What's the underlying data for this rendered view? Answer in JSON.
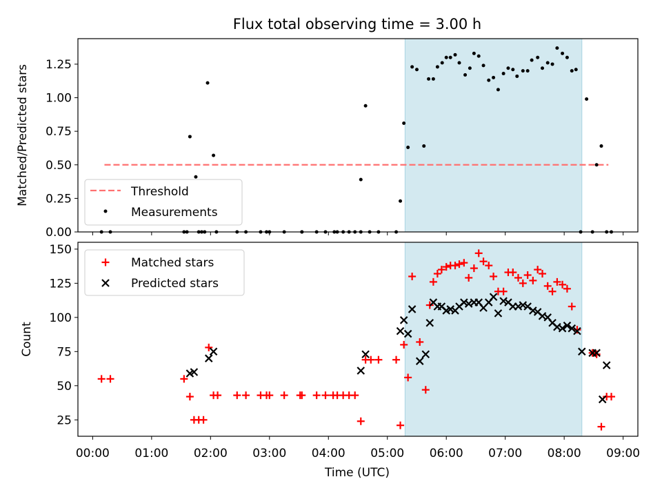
{
  "chart_data": [
    {
      "type": "scatter",
      "title": "Flux total observing time = 3.00 h",
      "ylabel": "Matched/Predicted stars",
      "xlabel": "",
      "xlim_hours": [
        -0.25,
        9.25
      ],
      "ylim": [
        0,
        1.44
      ],
      "yticks": [
        "0.00",
        "0.25",
        "0.50",
        "0.75",
        "1.00",
        "1.25"
      ],
      "legend_position": "lower-left",
      "legend": {
        "threshold": "Threshold",
        "measurements": "Measurements"
      },
      "threshold": {
        "value": 0.5,
        "x": [
          0.2,
          8.75
        ],
        "color": "#ff7070"
      },
      "highlight_span_hours": [
        5.3,
        8.3
      ],
      "highlight_color": "#d3e9f0",
      "series": [
        {
          "name": "Measurements",
          "marker": "point",
          "color": "#000000",
          "x": [
            0.15,
            0.3,
            1.55,
            1.6,
            1.65,
            1.75,
            1.8,
            1.85,
            1.9,
            1.95,
            2.05,
            2.1,
            2.45,
            2.6,
            2.85,
            2.95,
            3.0,
            3.25,
            3.55,
            3.55,
            3.8,
            3.95,
            4.1,
            4.15,
            4.25,
            4.35,
            4.45,
            4.55,
            4.55,
            4.63,
            4.7,
            4.85,
            5.15,
            5.22,
            5.28,
            5.35,
            5.42,
            5.5,
            5.62,
            5.7,
            5.78,
            5.85,
            5.93,
            6.0,
            6.07,
            6.15,
            6.22,
            6.32,
            6.4,
            6.47,
            6.55,
            6.63,
            6.72,
            6.8,
            6.88,
            6.97,
            7.05,
            7.13,
            7.2,
            7.3,
            7.38,
            7.45,
            7.55,
            7.63,
            7.72,
            7.8,
            7.88,
            7.97,
            8.05,
            8.13,
            8.2,
            8.28,
            8.38,
            8.48,
            8.55,
            8.63,
            8.72,
            8.8
          ],
          "values": [
            0.0,
            0.0,
            0.0,
            0.0,
            0.71,
            0.41,
            0.0,
            0.0,
            0.0,
            1.11,
            0.57,
            0.0,
            0.0,
            0.0,
            0.0,
            0.0,
            0.0,
            0.0,
            0.0,
            0.0,
            0.0,
            0.0,
            0.0,
            0.0,
            0.0,
            0.0,
            0.0,
            0.0,
            0.39,
            0.94,
            0.0,
            0.0,
            0.0,
            0.23,
            0.81,
            0.63,
            1.23,
            1.21,
            0.64,
            1.14,
            1.14,
            1.23,
            1.26,
            1.3,
            1.3,
            1.32,
            1.26,
            1.17,
            1.22,
            1.33,
            1.31,
            1.24,
            1.13,
            1.15,
            1.06,
            1.18,
            1.22,
            1.21,
            1.16,
            1.2,
            1.2,
            1.28,
            1.3,
            1.22,
            1.26,
            1.25,
            1.37,
            1.33,
            1.3,
            1.2,
            1.21,
            0.0,
            0.99,
            0.0,
            0.5,
            0.64,
            0.0,
            0.0
          ]
        }
      ]
    },
    {
      "type": "scatter",
      "title": "",
      "ylabel": "Count",
      "xlabel": "Time (UTC)",
      "xlim_hours": [
        -0.25,
        9.25
      ],
      "ylim": [
        13,
        155
      ],
      "yticks": [
        "25",
        "50",
        "75",
        "100",
        "125",
        "150"
      ],
      "xticks": [
        "00:00",
        "01:00",
        "02:00",
        "03:00",
        "04:00",
        "05:00",
        "06:00",
        "07:00",
        "08:00",
        "09:00"
      ],
      "legend_position": "top-left",
      "legend": {
        "matched": "Matched stars",
        "predicted": "Predicted stars"
      },
      "highlight_span_hours": [
        5.3,
        8.3
      ],
      "highlight_color": "#d3e9f0",
      "series": [
        {
          "name": "Matched stars",
          "marker": "plus",
          "color": "#ff0000",
          "x": [
            0.15,
            0.3,
            1.55,
            1.65,
            1.72,
            1.8,
            1.88,
            1.97,
            2.05,
            2.12,
            2.45,
            2.6,
            2.85,
            2.95,
            3.0,
            3.25,
            3.52,
            3.55,
            3.8,
            3.95,
            4.08,
            4.15,
            4.25,
            4.35,
            4.45,
            4.55,
            4.63,
            4.72,
            4.85,
            5.15,
            5.22,
            5.28,
            5.35,
            5.42,
            5.55,
            5.65,
            5.72,
            5.78,
            5.85,
            5.92,
            6.0,
            6.07,
            6.15,
            6.22,
            6.3,
            6.38,
            6.47,
            6.55,
            6.63,
            6.72,
            6.8,
            6.88,
            6.97,
            7.05,
            7.13,
            7.22,
            7.3,
            7.38,
            7.47,
            7.55,
            7.63,
            7.72,
            7.8,
            7.88,
            7.97,
            8.05,
            8.13,
            8.22,
            8.48,
            8.55,
            8.63,
            8.72,
            8.8
          ],
          "values": [
            55,
            55,
            55,
            42,
            25,
            25,
            25,
            78,
            43,
            43,
            43,
            43,
            43,
            43,
            43,
            43,
            43,
            43,
            43,
            43,
            43,
            43,
            43,
            43,
            43,
            24,
            69,
            69,
            69,
            69,
            21,
            80,
            56,
            130,
            82,
            47,
            109,
            126,
            132,
            135,
            137,
            138,
            138,
            139,
            140,
            129,
            136,
            147,
            141,
            138,
            130,
            119,
            119,
            133,
            133,
            129,
            125,
            131,
            127,
            135,
            132,
            123,
            119,
            126,
            124,
            121,
            108,
            91,
            74,
            73,
            20,
            42,
            42
          ]
        },
        {
          "name": "Predicted stars",
          "marker": "x",
          "color": "#000000",
          "x": [
            1.65,
            1.72,
            1.97,
            2.05,
            4.55,
            4.63,
            5.22,
            5.28,
            5.35,
            5.42,
            5.55,
            5.65,
            5.72,
            5.78,
            5.85,
            5.92,
            6.0,
            6.07,
            6.15,
            6.22,
            6.3,
            6.38,
            6.47,
            6.55,
            6.63,
            6.72,
            6.8,
            6.88,
            6.97,
            7.05,
            7.13,
            7.22,
            7.3,
            7.38,
            7.47,
            7.55,
            7.63,
            7.72,
            7.8,
            7.88,
            7.97,
            8.05,
            8.13,
            8.22,
            8.3,
            8.48,
            8.55,
            8.65,
            8.72
          ],
          "values": [
            59,
            60,
            70,
            75,
            61,
            73,
            90,
            98,
            88,
            106,
            68,
            73,
            96,
            111,
            108,
            108,
            105,
            106,
            105,
            108,
            111,
            110,
            111,
            111,
            107,
            111,
            115,
            103,
            112,
            111,
            108,
            108,
            109,
            108,
            105,
            104,
            101,
            100,
            96,
            93,
            92,
            94,
            92,
            90,
            75,
            74,
            74,
            40,
            65
          ]
        }
      ]
    }
  ]
}
